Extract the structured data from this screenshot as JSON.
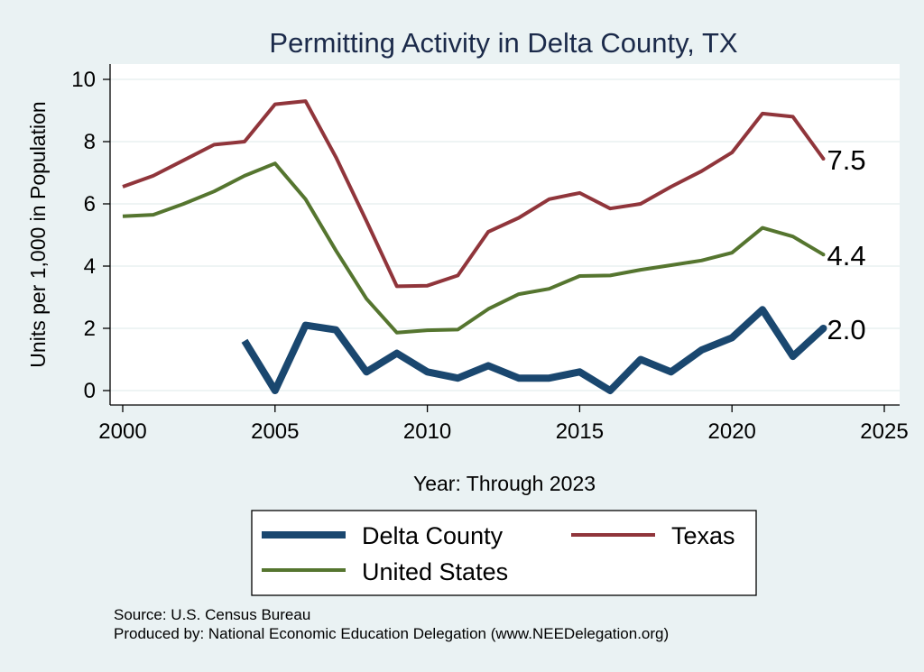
{
  "chart_data": {
    "type": "line",
    "title": "Permitting Activity in Delta County, TX",
    "xlabel": "Year: Through 2023",
    "ylabel": "Units per 1,000 in Population",
    "xlim": [
      2000,
      2025
    ],
    "ylim": [
      0,
      10
    ],
    "xticks": [
      2000,
      2005,
      2010,
      2015,
      2020,
      2025
    ],
    "yticks": [
      0,
      2,
      4,
      6,
      8,
      10
    ],
    "grid": true,
    "legend_position": "bottom",
    "series": [
      {
        "name": "Delta County",
        "color": "#1a476f",
        "end_label": "2.0",
        "x": [
          2004,
          2005,
          2006,
          2007,
          2008,
          2009,
          2010,
          2011,
          2012,
          2013,
          2014,
          2015,
          2016,
          2017,
          2018,
          2019,
          2020,
          2021,
          2022,
          2023
        ],
        "values": [
          1.6,
          0.0,
          2.1,
          1.95,
          0.6,
          1.2,
          0.6,
          0.4,
          0.8,
          0.4,
          0.4,
          0.6,
          0.0,
          1.0,
          0.6,
          1.3,
          1.7,
          2.6,
          1.1,
          2.0
        ]
      },
      {
        "name": "Texas",
        "color": "#90353b",
        "end_label": "7.5",
        "x": [
          2000,
          2001,
          2002,
          2003,
          2004,
          2005,
          2006,
          2007,
          2008,
          2009,
          2010,
          2011,
          2012,
          2013,
          2014,
          2015,
          2016,
          2017,
          2018,
          2019,
          2020,
          2021,
          2022,
          2023
        ],
        "values": [
          6.55,
          6.9,
          7.4,
          7.9,
          8.0,
          9.2,
          9.3,
          7.5,
          5.45,
          3.35,
          3.37,
          3.7,
          5.1,
          5.55,
          6.15,
          6.35,
          5.85,
          6.0,
          6.55,
          7.05,
          7.65,
          8.9,
          8.8,
          7.45
        ]
      },
      {
        "name": "United States",
        "color": "#55752f",
        "end_label": "4.4",
        "x": [
          2000,
          2001,
          2002,
          2003,
          2004,
          2005,
          2006,
          2007,
          2008,
          2009,
          2010,
          2011,
          2012,
          2013,
          2014,
          2015,
          2016,
          2017,
          2018,
          2019,
          2020,
          2021,
          2022,
          2023
        ],
        "values": [
          5.6,
          5.65,
          6.0,
          6.4,
          6.9,
          7.3,
          6.15,
          4.5,
          2.95,
          1.86,
          1.94,
          1.96,
          2.62,
          3.1,
          3.27,
          3.68,
          3.7,
          3.88,
          4.03,
          4.18,
          4.43,
          5.23,
          4.95,
          4.37
        ]
      }
    ],
    "legend": [
      {
        "series": "Delta County",
        "label": "Delta County"
      },
      {
        "series": "Texas",
        "label": "Texas"
      },
      {
        "series": "United States",
        "label": "United States"
      }
    ],
    "notes": [
      "Source: U.S. Census Bureau",
      "Produced by: National Economic Education Delegation (www.NEEDelegation.org)"
    ]
  }
}
